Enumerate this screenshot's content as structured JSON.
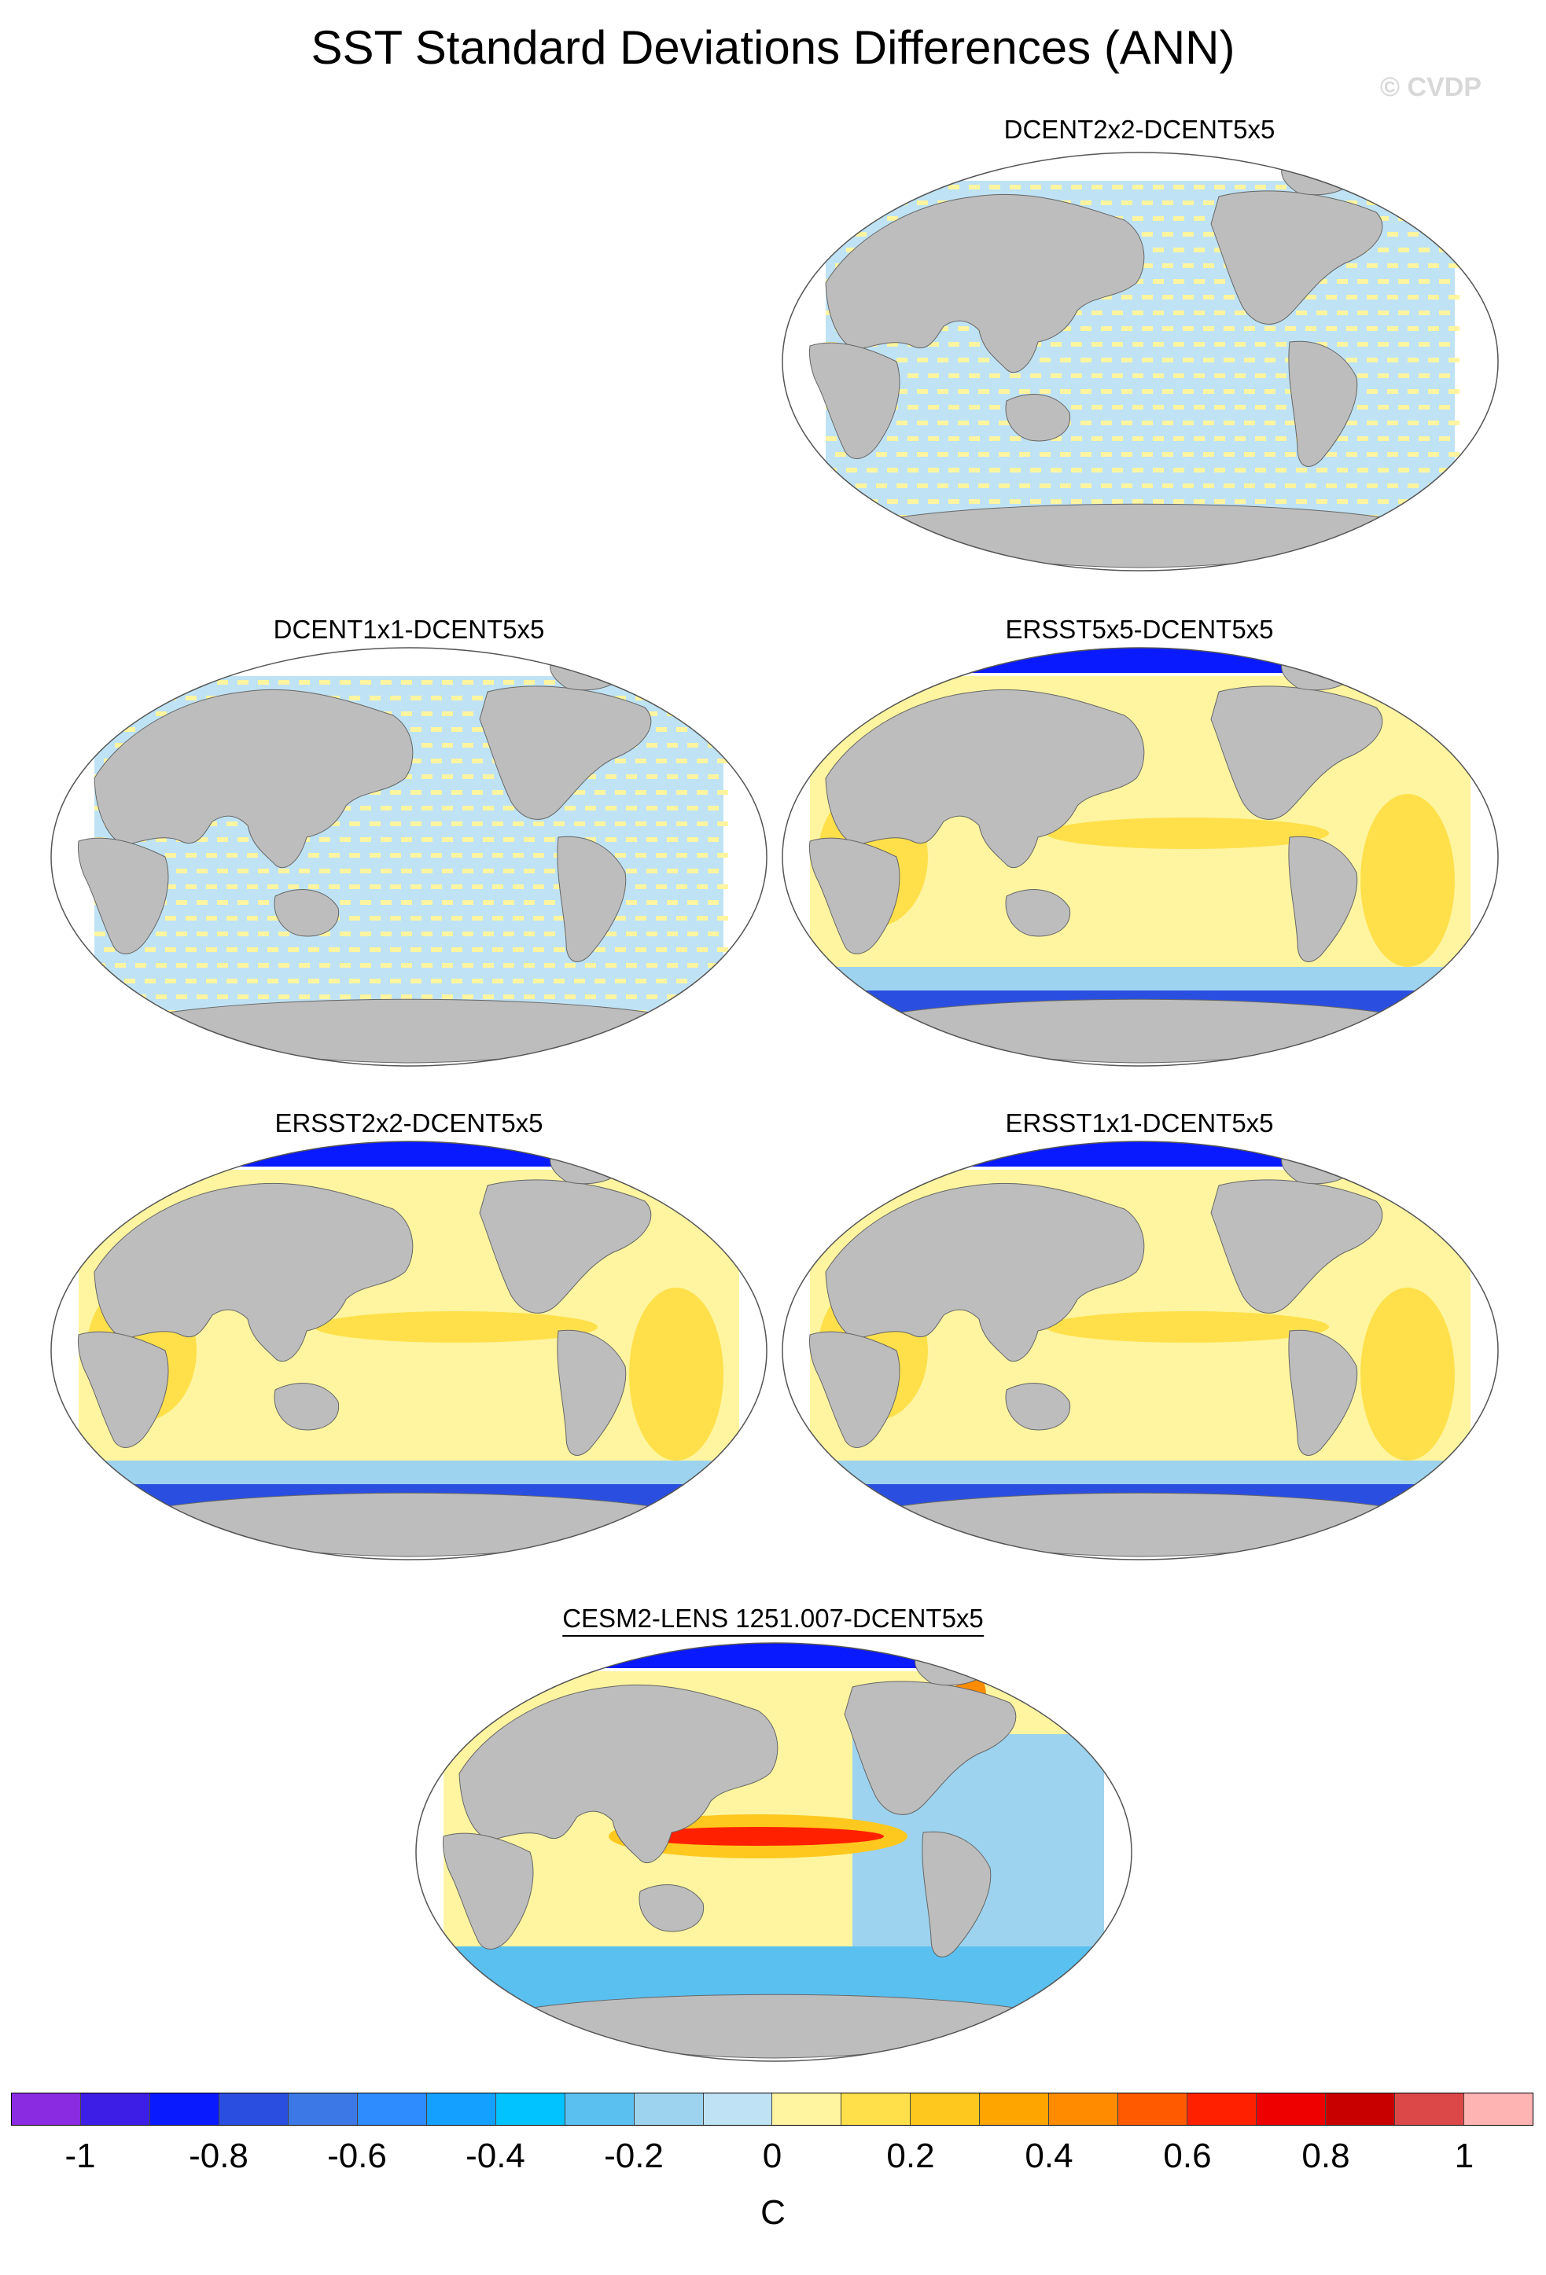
{
  "title": "SST Standard Deviations Differences (ANN)",
  "credit": "© CVDP",
  "panels": [
    {
      "label": "DCENT2x2-DCENT5x5",
      "pattern": "stripes"
    },
    {
      "label": "DCENT1x1-DCENT5x5",
      "pattern": "stripes"
    },
    {
      "label": "ERSST5x5-DCENT5x5",
      "pattern": "ersst"
    },
    {
      "label": "ERSST2x2-DCENT5x5",
      "pattern": "ersst"
    },
    {
      "label": "ERSST1x1-DCENT5x5",
      "pattern": "ersst"
    },
    {
      "label": "CESM2-LENS 1251.007-DCENT5x5",
      "pattern": "cesm"
    }
  ],
  "colorbar": {
    "colors": [
      "#8a2be2",
      "#3d1ee6",
      "#0a1aff",
      "#2a4fe0",
      "#3c78e6",
      "#2f8cff",
      "#14a0ff",
      "#00c3ff",
      "#5ac0f0",
      "#9dd3ee",
      "#bfe3f4",
      "#fff5a0",
      "#ffe04a",
      "#ffc81e",
      "#ffa500",
      "#ff8c00",
      "#ff5a00",
      "#ff2000",
      "#ee0000",
      "#c80000",
      "#dc4848",
      "#ffb4b4"
    ],
    "ticks": [
      "-1",
      "-0.8",
      "-0.6",
      "-0.4",
      "-0.2",
      "0",
      "0.2",
      "0.4",
      "0.6",
      "0.8",
      "1"
    ],
    "unit": "C"
  },
  "legend_colors": {
    "land": "#bdbdbd",
    "no_data": "#ffffff"
  }
}
